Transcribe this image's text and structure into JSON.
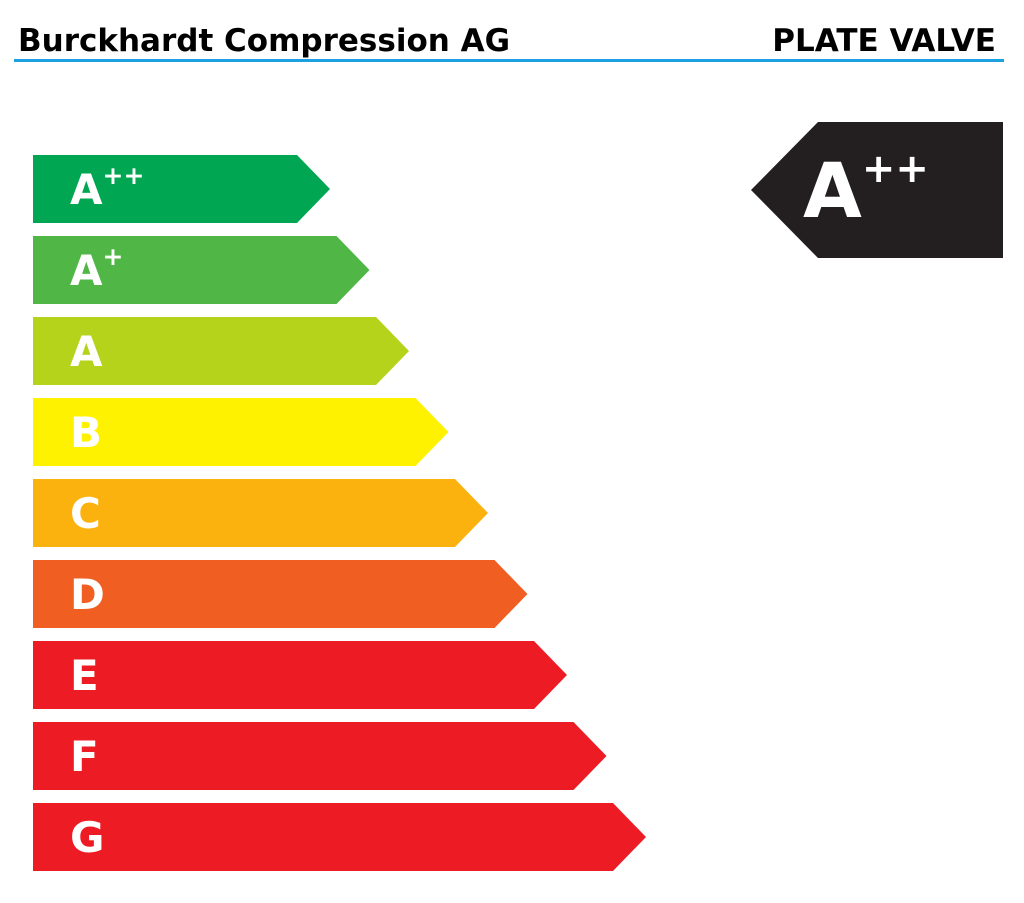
{
  "header": {
    "company": "Burckhardt Compression AG",
    "product": "PLATE VALVE"
  },
  "classes": [
    {
      "letter": "A",
      "superscript": "++",
      "color": "#00a651"
    },
    {
      "letter": "A",
      "superscript": "+",
      "color": "#50b747"
    },
    {
      "letter": "A",
      "color": "#b5d31b"
    },
    {
      "letter": "B",
      "color": "#fff200"
    },
    {
      "letter": "C",
      "color": "#fbb20f"
    },
    {
      "letter": "D",
      "color": "#f15e22"
    },
    {
      "letter": "E",
      "color": "#ed1c24"
    },
    {
      "letter": "F",
      "color": "#ed1c24"
    },
    {
      "letter": "G",
      "color": "#ed1c24"
    }
  ],
  "rating": {
    "letter": "A",
    "superscript": "++",
    "color": "#231f20"
  }
}
